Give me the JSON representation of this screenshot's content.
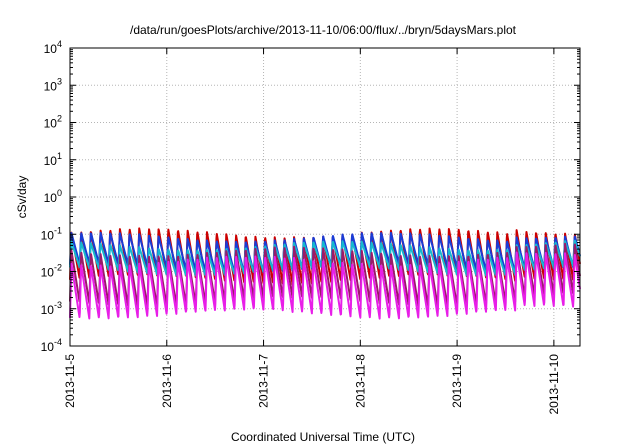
{
  "chart_data": {
    "type": "line",
    "title": "/data/run/goesPlots/archive/2013-11-10/06:00/flux/../bryn/5daysMars.plot",
    "xlabel": "Coordinated Universal Time (UTC)",
    "ylabel": "cSv/day",
    "y_scale": "log",
    "ylim_exponent": [
      -4,
      4
    ],
    "y_tick_labels": [
      {
        "base": "10",
        "exp": "-4"
      },
      {
        "base": "10",
        "exp": "-3"
      },
      {
        "base": "10",
        "exp": "-2"
      },
      {
        "base": "10",
        "exp": "-1"
      },
      {
        "base": "10",
        "exp": "0"
      },
      {
        "base": "10",
        "exp": "1"
      },
      {
        "base": "10",
        "exp": "2"
      },
      {
        "base": "10",
        "exp": "3"
      },
      {
        "base": "10",
        "exp": "4"
      }
    ],
    "x_tick_labels": [
      "2013-11-5",
      "2013-11-6",
      "2013-11-7",
      "2013-11-8",
      "2013-11-9",
      "2013-11-10"
    ],
    "xlim_days": [
      0,
      5.27
    ],
    "grid": true,
    "oscillation_cycles_per_day": 10,
    "series": [
      {
        "color": "#cc0000",
        "peak": 0.11,
        "trough": 0.006
      },
      {
        "color": "#1a3cd6",
        "peak": 0.085,
        "trough": 0.012
      },
      {
        "color": "#15b8d0",
        "peak": 0.05,
        "trough": 0.01
      },
      {
        "color": "#9a1a6a",
        "peak": 0.035,
        "trough": 0.0015
      },
      {
        "color": "#e81ee8",
        "peak": 0.02,
        "trough": 0.0007
      }
    ]
  }
}
